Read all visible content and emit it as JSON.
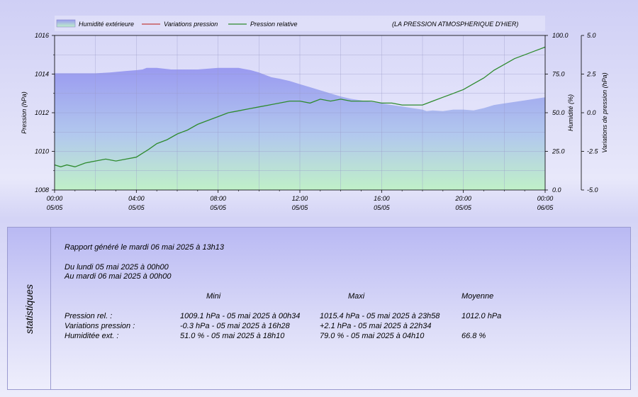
{
  "chart_data": {
    "type": "line",
    "title": "(LA PRESSION ATMOSPHERIQUE D'HIER)",
    "legend": [
      "Humidité extérieure",
      "Variations pression",
      "Pression relative"
    ],
    "legend_placement": "top",
    "grid": true,
    "x_ticks": [
      {
        "time": "00:00",
        "date": "05/05"
      },
      {
        "time": "04:00",
        "date": "05/05"
      },
      {
        "time": "08:00",
        "date": "05/05"
      },
      {
        "time": "12:00",
        "date": "05/05"
      },
      {
        "time": "16:00",
        "date": "05/05"
      },
      {
        "time": "20:00",
        "date": "05/05"
      },
      {
        "time": "00:00",
        "date": "06/05"
      }
    ],
    "xlim": [
      0,
      24
    ],
    "left_axis": {
      "label": "Pression (hPa)",
      "lim": [
        1008,
        1016
      ],
      "ticks": [
        "1008",
        "1010",
        "1012",
        "1014",
        "1016"
      ]
    },
    "right_axis_1": {
      "label": "Humidité (%)",
      "lim": [
        0,
        100
      ],
      "ticks": [
        "0.0",
        "25.0",
        "50.0",
        "75.0",
        "100.0"
      ]
    },
    "right_axis_2": {
      "label": "Variations de pression (hPa)",
      "lim": [
        -5,
        5
      ],
      "ticks": [
        "-5.0",
        "-2.5",
        "0.0",
        "2.5",
        "5.0"
      ]
    },
    "series": [
      {
        "name": "Humidité extérieure",
        "axis": "humidity",
        "style": "area",
        "color": "#9a9af0",
        "x": [
          0,
          2,
          2.7,
          3.5,
          4,
          4.3,
          4.5,
          5,
          5.7,
          6,
          7,
          7.5,
          8,
          8.5,
          9,
          9.2,
          9.6,
          10,
          10.3,
          10.6,
          11,
          11.5,
          12,
          12.5,
          13,
          13.5,
          14,
          14.5,
          15,
          15.5,
          16,
          16.5,
          17,
          17.5,
          18,
          18.2,
          18.5,
          19,
          19.5,
          20,
          20.5,
          21,
          21.5,
          22,
          22.5,
          23,
          23.5,
          24
        ],
        "y": [
          75.5,
          75.5,
          76,
          77,
          77.5,
          78,
          79,
          79,
          78,
          78,
          78,
          78.5,
          79,
          79,
          79,
          78.5,
          77.5,
          76,
          74.5,
          73,
          72,
          70.5,
          68.5,
          66.5,
          64.5,
          62.5,
          60.5,
          59,
          58,
          57,
          56,
          55,
          54,
          53,
          52,
          51,
          51.5,
          51,
          52,
          52,
          51.5,
          53,
          55,
          56,
          57,
          58,
          59,
          60
        ]
      },
      {
        "name": "Variations pression",
        "axis": "variation",
        "style": "line",
        "color": "#c04040",
        "x": [],
        "y": []
      },
      {
        "name": "Pression relative",
        "axis": "pressure",
        "style": "line",
        "color": "#2e8b2e",
        "x": [
          0,
          0.3,
          0.6,
          1,
          1.5,
          2,
          2.5,
          3,
          3.5,
          4,
          4.3,
          4.6,
          5,
          5.5,
          6,
          6.5,
          7,
          7.5,
          8,
          8.5,
          9,
          9.5,
          10,
          10.5,
          11,
          11.5,
          12,
          12.5,
          13,
          13.5,
          14,
          14.5,
          15,
          15.5,
          16,
          16.5,
          17,
          17.5,
          18,
          18.5,
          19,
          19.5,
          20,
          20.5,
          21,
          21.5,
          22,
          22.5,
          23,
          23.5,
          24
        ],
        "y": [
          1009.3,
          1009.2,
          1009.3,
          1009.2,
          1009.4,
          1009.5,
          1009.6,
          1009.5,
          1009.6,
          1009.7,
          1009.9,
          1010.1,
          1010.4,
          1010.6,
          1010.9,
          1011.1,
          1011.4,
          1011.6,
          1011.8,
          1012.0,
          1012.1,
          1012.2,
          1012.3,
          1012.4,
          1012.5,
          1012.6,
          1012.6,
          1012.5,
          1012.7,
          1012.6,
          1012.7,
          1012.6,
          1012.6,
          1012.6,
          1012.5,
          1012.5,
          1012.4,
          1012.4,
          1012.4,
          1012.6,
          1012.8,
          1013.0,
          1013.2,
          1013.5,
          1013.8,
          1014.2,
          1014.5,
          1014.8,
          1015.0,
          1015.2,
          1015.4
        ]
      }
    ]
  },
  "stats": {
    "side_title": "statistiques",
    "report": "Rapport généré le mardi 06 mai 2025 à 13h13",
    "period_from": "Du lundi 05 mai 2025 à 00h00",
    "period_to": "Au mardi 06 mai 2025 à 00h00",
    "headers": [
      "Mini",
      "Maxi",
      "Moyenne"
    ],
    "rows": [
      {
        "label": "Pression rel. :",
        "min": "1009.1 hPa - 05 mai 2025 à 00h34",
        "max": "1015.4 hPa - 05 mai 2025 à 23h58",
        "avg": "1012.0 hPa"
      },
      {
        "label": "Variations pression :",
        "min": "-0.3 hPa - 05 mai 2025 à 16h28",
        "max": "+2.1 hPa - 05 mai 2025 à 22h34",
        "avg": ""
      },
      {
        "label": "Humiditée ext. :",
        "min": "51.0 % - 05 mai 2025 à 18h10",
        "max": "79.0 % - 05 mai 2025 à 04h10",
        "avg": "66.8 %"
      }
    ]
  }
}
